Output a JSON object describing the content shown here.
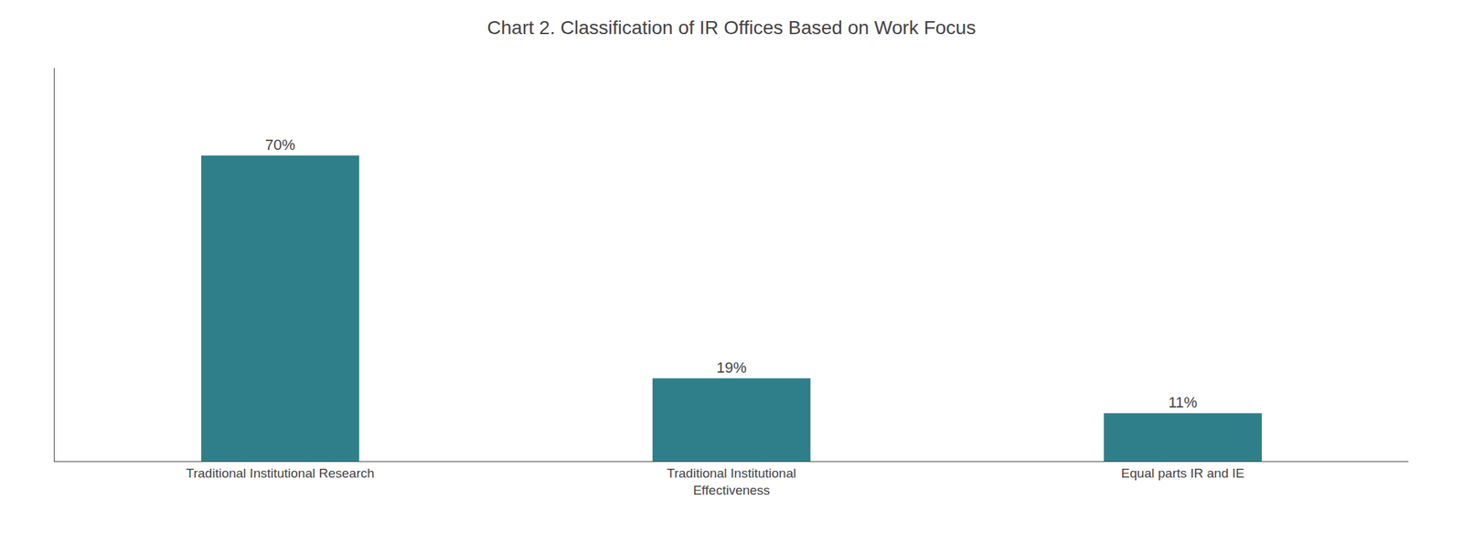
{
  "chart_data": {
    "type": "bar",
    "title": "Chart 2. Classification of IR Offices Based on Work Focus",
    "categories": [
      "Traditional Institutional Research",
      "Traditional Institutional\nEffectiveness",
      "Equal parts IR and IE"
    ],
    "values": [
      70,
      19,
      11
    ],
    "value_labels": [
      "70%",
      "19%",
      "11%"
    ],
    "data_labels": true,
    "color": "#2e7f8a",
    "ylim": [
      0,
      90
    ],
    "grid": false,
    "tick_labels": "x"
  }
}
